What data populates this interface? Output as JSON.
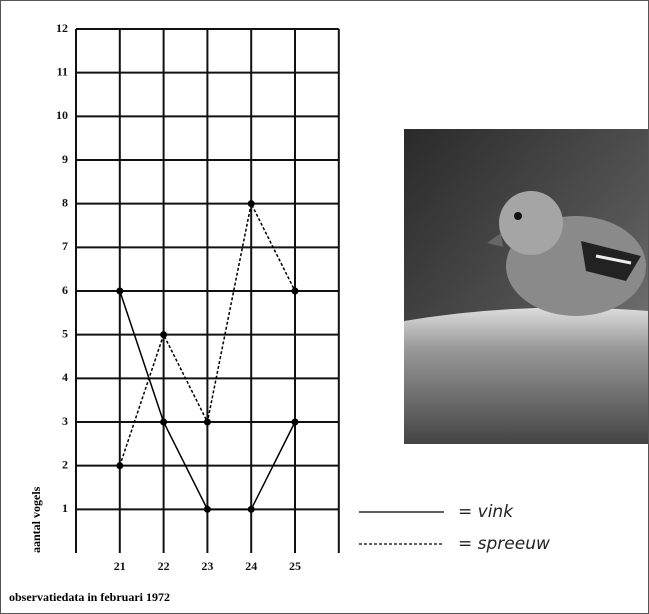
{
  "chart_data": {
    "type": "line",
    "x_label": "observatiedata in februari 1972",
    "y_label": "aantal vogels",
    "categories": [
      "21",
      "22",
      "23",
      "24",
      "25"
    ],
    "series": [
      {
        "name": "= vink",
        "color": "#000000",
        "dash": "none",
        "values": [
          6,
          3,
          1,
          1,
          3
        ]
      },
      {
        "name": "= spreeuw",
        "color": "#000000",
        "dash": "3,2",
        "values": [
          2,
          5,
          3,
          8,
          6
        ]
      }
    ],
    "ylim": [
      0,
      12
    ],
    "yticks": [
      1,
      2,
      3,
      4,
      5,
      6,
      7,
      8,
      9,
      10,
      11,
      12
    ],
    "grid": true
  }
}
